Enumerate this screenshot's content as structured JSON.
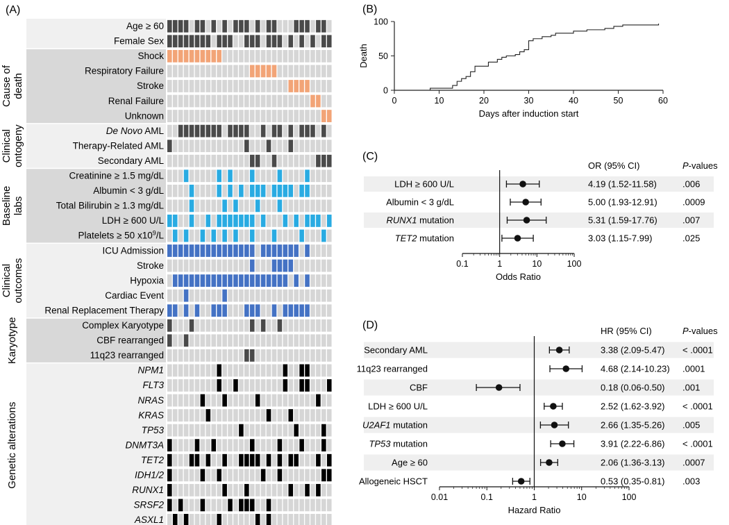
{
  "panels": {
    "a": "(A)",
    "b": "(B)",
    "c": "(C)",
    "d": "(D)"
  },
  "chart_data": [
    {
      "type": "heatmap",
      "panel": "A",
      "n_columns": 30,
      "groups": [
        {
          "label": "",
          "rows": [
            0,
            1
          ]
        },
        {
          "label": "Cause of death",
          "lines": [
            "Cause of",
            "death"
          ],
          "rows": [
            2,
            6
          ]
        },
        {
          "label": "Clinical ontogeny",
          "lines": [
            "Clinical",
            "ontogeny"
          ],
          "rows": [
            7,
            9
          ]
        },
        {
          "label": "Baseline labs",
          "lines": [
            "Baseline",
            "labs"
          ],
          "rows": [
            10,
            14
          ]
        },
        {
          "label": "Clinical outcomes",
          "lines": [
            "Clinical",
            "outcomes"
          ],
          "rows": [
            15,
            19
          ]
        },
        {
          "label": "Karyotype",
          "lines": [
            "Karyotype"
          ],
          "rows": [
            20,
            22
          ]
        },
        {
          "label": "Genetic alterations",
          "lines": [
            "Genetic alterations"
          ],
          "rows": [
            23,
            33
          ]
        }
      ],
      "rows": [
        {
          "label": "Age ≥ 60",
          "color": "#4a4a4a",
          "filled": [
            0,
            1,
            2,
            3,
            5,
            6,
            8,
            10,
            12,
            13,
            14,
            16,
            18,
            19,
            23,
            24,
            25,
            27,
            28
          ]
        },
        {
          "label": "Female Sex",
          "color": "#4a4a4a",
          "filled": [
            0,
            1,
            2,
            3,
            4,
            5,
            6,
            7,
            9,
            10,
            11,
            14,
            15,
            16,
            18,
            19,
            20,
            22,
            24,
            26,
            28,
            29
          ]
        },
        {
          "label": "Shock",
          "color": "#f2a477",
          "filled": [
            0,
            1,
            2,
            3,
            4,
            5,
            6,
            7,
            8,
            9
          ]
        },
        {
          "label": "Respiratory Failure",
          "color": "#f2a477",
          "filled": [
            15,
            16,
            17,
            18,
            19
          ]
        },
        {
          "label": "Stroke",
          "color": "#f2a477",
          "filled": [
            22,
            23,
            24,
            25
          ]
        },
        {
          "label": "Renal Failure",
          "color": "#f2a477",
          "filled": [
            26,
            27
          ]
        },
        {
          "label": "Unknown",
          "color": "#f2a477",
          "filled": [
            28,
            29
          ]
        },
        {
          "label": "De Novo AML",
          "italic_part": "De Novo",
          "color": "#4a4a4a",
          "filled": [
            2,
            3,
            4,
            5,
            6,
            7,
            8,
            9,
            11,
            12,
            13,
            14,
            17,
            19,
            20,
            22,
            24,
            25,
            26,
            28
          ]
        },
        {
          "label": "Therapy-Related AML",
          "color": "#4a4a4a",
          "filled": [
            0,
            14,
            18,
            22
          ]
        },
        {
          "label": "Secondary AML",
          "color": "#4a4a4a",
          "filled": [
            15,
            16,
            19,
            27,
            28,
            29
          ]
        },
        {
          "label": "Creatinine ≥ 1.5 mg/dL",
          "color": "#29abe2",
          "filled": [
            3,
            9,
            11,
            15,
            20,
            25
          ]
        },
        {
          "label": "Albumin < 3 g/dL",
          "color": "#29abe2",
          "filled": [
            4,
            9,
            11,
            13,
            15,
            16,
            17,
            19,
            20,
            21,
            22,
            24,
            25
          ]
        },
        {
          "label": "Total Bilirubin ≥ 1.3 mg/dL",
          "color": "#29abe2",
          "filled": [
            4,
            10,
            12,
            16,
            20
          ]
        },
        {
          "label": "LDH ≥ 600 U/L",
          "color": "#29abe2",
          "filled": [
            0,
            1,
            4,
            7,
            9,
            10,
            11,
            12,
            13,
            14,
            15,
            17,
            21,
            23,
            25,
            26,
            27,
            29
          ]
        },
        {
          "label": "Platelets ≥ 50 x10^9/L",
          "sup": "9",
          "color": "#29abe2",
          "filled": [
            1,
            3,
            6,
            8,
            10,
            12,
            15,
            19,
            24,
            28
          ]
        },
        {
          "label": "ICU Admission",
          "color": "#4472c4",
          "filled": [
            0,
            1,
            2,
            3,
            4,
            5,
            6,
            7,
            8,
            9,
            10,
            11,
            12,
            13,
            14,
            15,
            17,
            18,
            19,
            20,
            21,
            22,
            23,
            25
          ]
        },
        {
          "label": "Stroke",
          "color": "#4472c4",
          "filled": [
            15,
            19,
            20,
            21,
            22
          ]
        },
        {
          "label": "Hypoxia",
          "color": "#4472c4",
          "filled": [
            1,
            2,
            3,
            4,
            5,
            6,
            7,
            8,
            9,
            10,
            11,
            12,
            13,
            14,
            15,
            16,
            17,
            18,
            19,
            20,
            21,
            23,
            25
          ]
        },
        {
          "label": "Cardiac Event",
          "color": "#4472c4",
          "filled": [
            3,
            10
          ]
        },
        {
          "label": "Renal Replacement Therapy",
          "color": "#4472c4",
          "filled": [
            0,
            1,
            3,
            5,
            8,
            9,
            10,
            14,
            15,
            16,
            19,
            21,
            22,
            23,
            24,
            25
          ]
        },
        {
          "label": "Complex Karyotype",
          "color": "#4a4a4a",
          "filled": [
            0,
            4,
            15,
            17,
            20
          ]
        },
        {
          "label": "CBF rearranged",
          "color": "#4a4a4a",
          "filled": [
            0,
            3
          ]
        },
        {
          "label": "11q23 rearranged",
          "color": "#4a4a4a",
          "filled": [
            14,
            15
          ]
        },
        {
          "label": "NPM1",
          "italic": true,
          "color": "#000000",
          "filled": [
            9,
            21,
            24,
            25
          ]
        },
        {
          "label": "FLT3",
          "italic": true,
          "color": "#000000",
          "filled": [
            9,
            12,
            21,
            24,
            25,
            29
          ]
        },
        {
          "label": "NRAS",
          "italic": true,
          "color": "#000000",
          "filled": [
            6,
            10,
            16,
            27
          ]
        },
        {
          "label": "KRAS",
          "italic": true,
          "color": "#000000",
          "filled": [
            7,
            18,
            22
          ]
        },
        {
          "label": "TP53",
          "italic": true,
          "color": "#000000",
          "filled": [
            13,
            23,
            28
          ]
        },
        {
          "label": "DNMT3A",
          "italic": true,
          "color": "#000000",
          "filled": [
            0,
            5,
            8,
            15,
            20,
            24,
            28
          ]
        },
        {
          "label": "TET2",
          "italic": true,
          "color": "#000000",
          "filled": [
            0,
            4,
            5,
            7,
            10,
            13,
            14,
            15,
            16,
            18,
            20,
            22,
            23,
            27,
            29
          ]
        },
        {
          "label": "IDH1/2",
          "italic": true,
          "color": "#000000",
          "filled": [
            0,
            6,
            9,
            17,
            20,
            28,
            29
          ]
        },
        {
          "label": "RUNX1",
          "italic": true,
          "color": "#000000",
          "filled": [
            0,
            10,
            14,
            22,
            25,
            27
          ]
        },
        {
          "label": "SRSF2",
          "italic": true,
          "color": "#000000",
          "filled": [
            0,
            2,
            6,
            11,
            13,
            14,
            15,
            18
          ]
        },
        {
          "label": "ASXL1",
          "italic": true,
          "color": "#000000",
          "filled": [
            1,
            3,
            9,
            16,
            18
          ]
        }
      ]
    },
    {
      "type": "line",
      "panel": "B",
      "step": true,
      "xlabel": "Days after induction start",
      "ylabel": "Death",
      "xlim": [
        0,
        60
      ],
      "ylim": [
        0,
        100
      ],
      "xticks": [
        0,
        10,
        20,
        30,
        40,
        50,
        60
      ],
      "yticks": [
        0,
        50,
        100
      ],
      "x": [
        8,
        13,
        14,
        15,
        16,
        17,
        18,
        21,
        23,
        24,
        25,
        27,
        28,
        29,
        30,
        31,
        33,
        35,
        36,
        40,
        43,
        47,
        49,
        51,
        59
      ],
      "y": [
        3,
        7,
        13,
        17,
        20,
        27,
        35,
        41,
        45,
        48,
        50,
        52,
        56,
        59,
        72,
        75,
        78,
        80,
        83,
        86,
        88,
        90,
        93,
        95,
        97
      ]
    },
    {
      "type": "scatter",
      "panel": "C",
      "forest": true,
      "xscale": "log",
      "xlabel": "Odds Ratio",
      "xlim": [
        0.1,
        100
      ],
      "xticks": [
        "0.1",
        "1",
        "10",
        "100"
      ],
      "reference": 1,
      "col_headers": {
        "ci": "OR (95% CI)",
        "p_prefix": "P",
        "p_suffix": "-values"
      },
      "rows": [
        {
          "label": "LDH ≥ 600 U/L",
          "est": 4.19,
          "lo": 1.52,
          "hi": 11.58,
          "ci": "4.19 (1.52-11.58)",
          "p": ".006"
        },
        {
          "label": "Albumin < 3 g/dL",
          "est": 5.0,
          "lo": 1.93,
          "hi": 12.91,
          "ci": "5.00 (1.93-12.91)",
          "p": ".0009"
        },
        {
          "label": "RUNX1 mutation",
          "italic_part": "RUNX1",
          "est": 5.31,
          "lo": 1.59,
          "hi": 17.76,
          "ci": "5.31 (1.59-17.76)",
          "p": ".007"
        },
        {
          "label": "TET2 mutation",
          "italic_part": "TET2",
          "est": 3.03,
          "lo": 1.15,
          "hi": 7.99,
          "ci": "3.03 (1.15-7.99)",
          "p": ".025"
        }
      ]
    },
    {
      "type": "scatter",
      "panel": "D",
      "forest": true,
      "xscale": "log",
      "xlabel": "Hazard Ratio",
      "xlim": [
        0.01,
        100
      ],
      "xticks": [
        "0.01",
        "0.1",
        "1",
        "10",
        "100"
      ],
      "reference": 1,
      "col_headers": {
        "ci": "HR (95% CI)",
        "p_prefix": "P",
        "p_suffix": "-values"
      },
      "rows": [
        {
          "label": "Secondary AML",
          "est": 3.38,
          "lo": 2.09,
          "hi": 5.47,
          "ci": "3.38 (2.09-5.47)",
          "p": "< .0001"
        },
        {
          "label": "11q23 rearranged",
          "est": 4.68,
          "lo": 2.14,
          "hi": 10.23,
          "ci": "4.68 (2.14-10.23)",
          "p": ".0001"
        },
        {
          "label": "CBF",
          "est": 0.18,
          "lo": 0.06,
          "hi": 0.5,
          "ci": "0.18 (0.06-0.50)",
          "p": ".001"
        },
        {
          "label": "LDH ≥ 600 U/L",
          "est": 2.52,
          "lo": 1.62,
          "hi": 3.92,
          "ci": "2.52 (1.62-3.92)",
          "p": "< .0001"
        },
        {
          "label": "U2AF1 mutation",
          "italic_part": "U2AF1",
          "est": 2.66,
          "lo": 1.35,
          "hi": 5.26,
          "ci": "2.66 (1.35-5.26)",
          "p": ".005"
        },
        {
          "label": "TP53 mutation",
          "italic_part": "TP53",
          "est": 3.91,
          "lo": 2.22,
          "hi": 6.86,
          "ci": "3.91 (2.22-6.86)",
          "p": "< .0001"
        },
        {
          "label": "Age ≥ 60",
          "est": 2.06,
          "lo": 1.36,
          "hi": 3.13,
          "ci": "2.06 (1.36-3.13)",
          "p": ".0007"
        },
        {
          "label": "Allogeneic HSCT",
          "est": 0.53,
          "lo": 0.35,
          "hi": 0.81,
          "ci": "0.53 (0.35-0.81)",
          "p": ".003"
        }
      ]
    }
  ]
}
